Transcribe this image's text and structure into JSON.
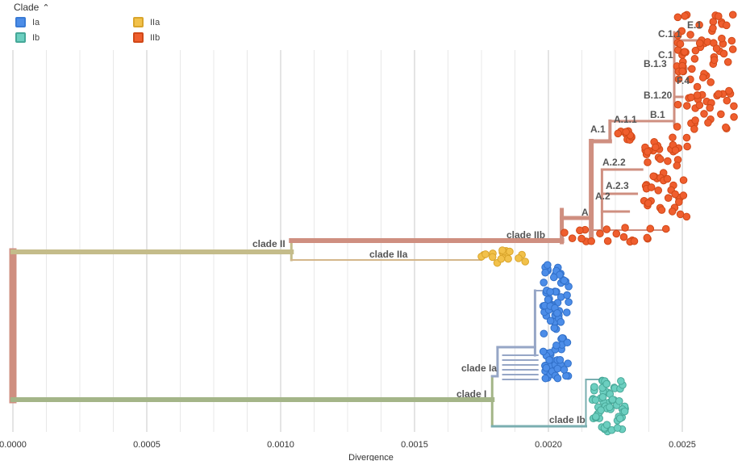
{
  "legend": {
    "title": "Clade",
    "items": [
      {
        "label": "Ia",
        "color": "#4c8de8"
      },
      {
        "label": "IIa",
        "color": "#f2c14a"
      },
      {
        "label": "Ib",
        "color": "#6ccfc0"
      },
      {
        "label": "IIb",
        "color": "#ef5e2e"
      }
    ]
  },
  "colors": {
    "root": "#cf8f80",
    "clade_I": "#a4b588",
    "clade_II": "#c4bc8a",
    "clade_Ia": "#96a6c6",
    "clade_Ib": "#7aaeb0",
    "clade_IIa": "#d4b68a",
    "clade_IIb": "#cf8f80",
    "grid": "#e3e3e3"
  },
  "chart_data": {
    "type": "scatter",
    "xlabel": "Divergence",
    "xlim": [
      0,
      0.0027
    ],
    "x_ticks": [
      0,
      0.0005,
      0.001,
      0.0015,
      0.002,
      0.0025
    ],
    "x_tick_labels": [
      "0.0000",
      "0.0005",
      "0.0010",
      "0.0015",
      "0.0020",
      "0.0025"
    ],
    "branch_labels": [
      {
        "label": "clade II",
        "x": 0.00104
      },
      {
        "label": "clade IIa",
        "x": 0.00151
      },
      {
        "label": "clade IIb",
        "x": 0.002
      },
      {
        "label": "clade Ia",
        "x": 0.00181
      },
      {
        "label": "clade I",
        "x": 0.00179
      },
      {
        "label": "clade Ib",
        "x": 0.00214
      },
      {
        "label": "A",
        "x": 0.00215
      },
      {
        "label": "A.1",
        "x": 0.00216
      },
      {
        "label": "A.1.1",
        "x": 0.00236
      },
      {
        "label": "A.2",
        "x": 0.00222
      },
      {
        "label": "A.2.2",
        "x": 0.00231
      },
      {
        "label": "A.2.3",
        "x": 0.00234
      },
      {
        "label": "B.1",
        "x": 0.00245
      },
      {
        "label": "B.1.3",
        "x": 0.00246
      },
      {
        "label": "B.1.20",
        "x": 0.00249
      },
      {
        "label": "F.4",
        "x": 0.0025
      },
      {
        "label": "C.1",
        "x": 0.00251
      },
      {
        "label": "C.1.1",
        "x": 0.00252
      },
      {
        "label": "E.1",
        "x": 0.00257
      }
    ],
    "series": [
      {
        "name": "Ia",
        "x_range": [
          0.00197,
          0.0021
        ],
        "count": 90
      },
      {
        "name": "Ib",
        "x_range": [
          0.00216,
          0.0023
        ],
        "count": 60
      },
      {
        "name": "IIa",
        "x_range": [
          0.00173,
          0.00193
        ],
        "count": 18
      },
      {
        "name": "IIb",
        "x_range": [
          0.00205,
          0.00271
        ],
        "count": 180
      }
    ]
  }
}
